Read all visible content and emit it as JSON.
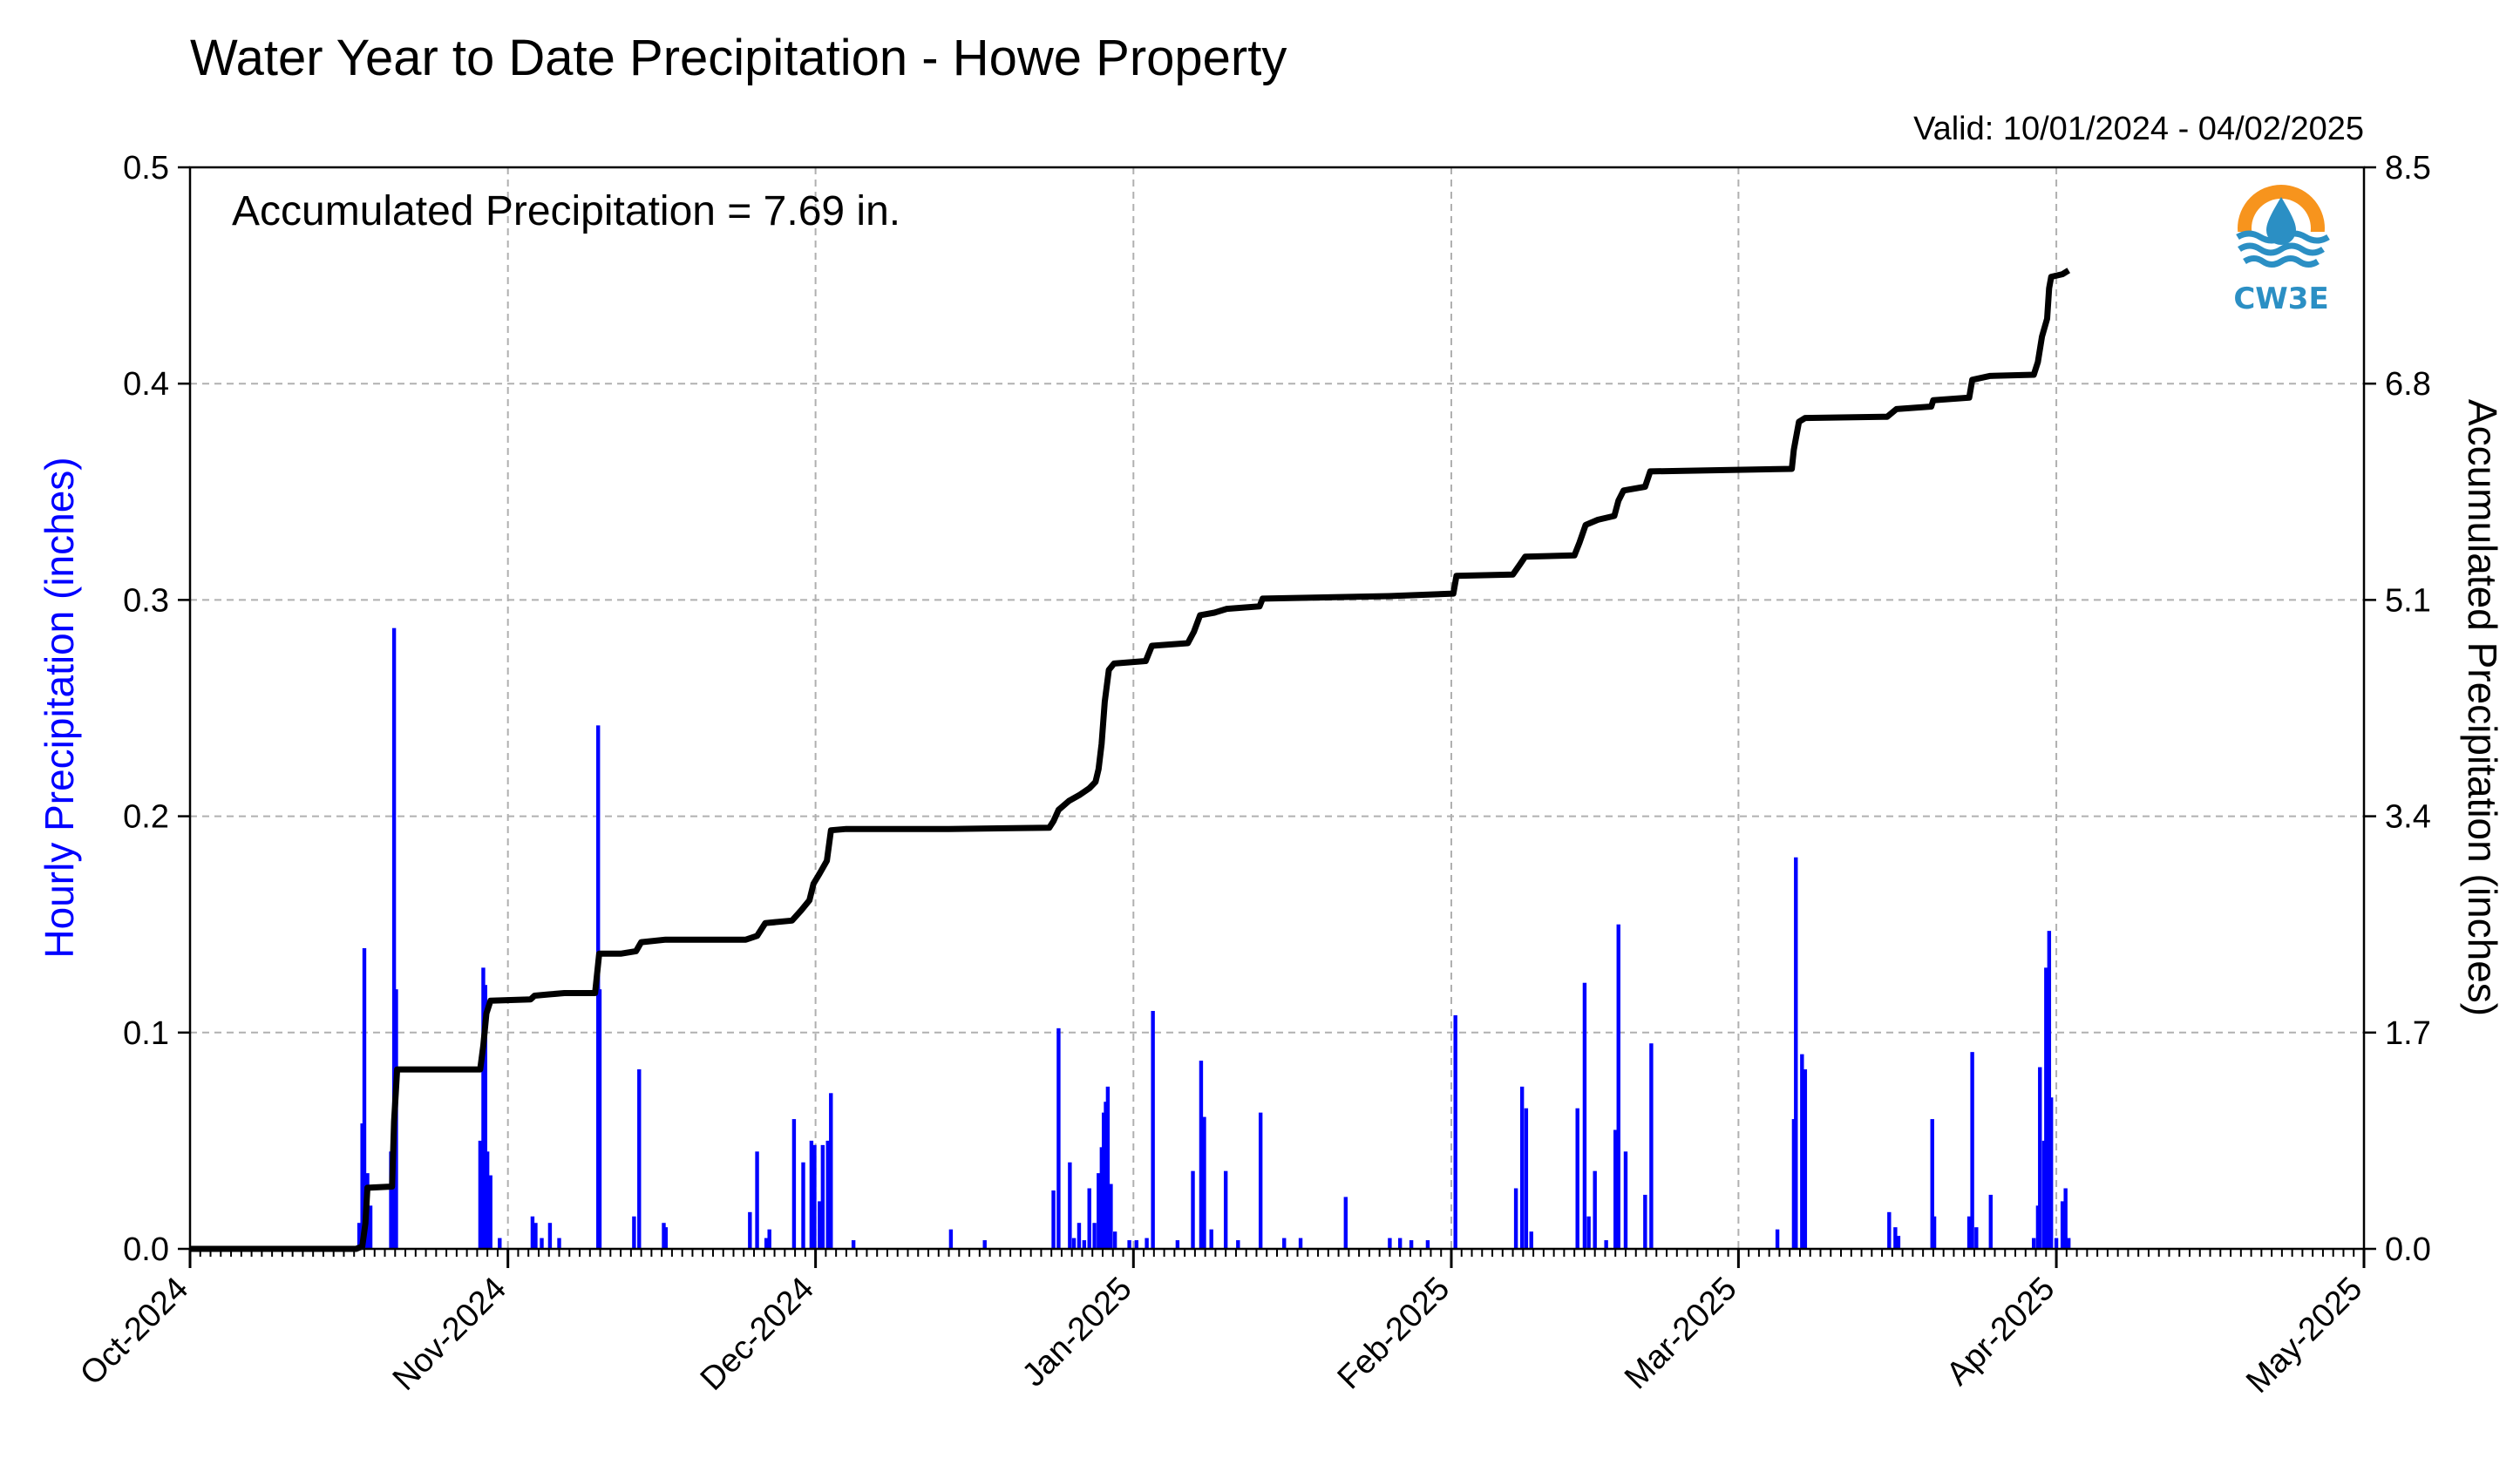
{
  "chart_data": {
    "type": "bar",
    "title": "Water Year to Date Precipitation - Howe Property",
    "subtitle": "Valid: 10/01/2024 - 04/02/2025",
    "annotation": "Accumulated Precipitation = 7.69 in.",
    "logo_text": "CW3E",
    "ylabel_left": "Hourly Precipitation (inches)",
    "ylabel_right": "Accumulated Precipitation (inches)",
    "ylim_left": [
      0,
      0.5
    ],
    "ylim_right": [
      0,
      8.5
    ],
    "yticks_left": [
      "0.0",
      "0.1",
      "0.2",
      "0.3",
      "0.4",
      "0.5"
    ],
    "yticks_right": [
      "0.0",
      "1.7",
      "3.4",
      "5.1",
      "6.8",
      "8.5"
    ],
    "xlim_days": [
      0,
      212
    ],
    "xticks": [
      {
        "label": "Oct-2024",
        "day": 0
      },
      {
        "label": "Nov-2024",
        "day": 31
      },
      {
        "label": "Dec-2024",
        "day": 61
      },
      {
        "label": "Jan-2025",
        "day": 92
      },
      {
        "label": "Feb-2025",
        "day": 123
      },
      {
        "label": "Mar-2025",
        "day": 151
      },
      {
        "label": "Apr-2025",
        "day": 182
      },
      {
        "label": "May-2025",
        "day": 212
      }
    ],
    "grid": true,
    "colors": {
      "hourly": "#0000ff",
      "accumulated": "#000000",
      "grid": "#b0b0b0",
      "logo_orange": "#f7941d",
      "logo_blue": "#2b8fc4"
    },
    "series": [
      {
        "name": "Hourly Precipitation",
        "type": "bar",
        "points": [
          [
            16.5,
            0.012
          ],
          [
            16.8,
            0.058
          ],
          [
            17.0,
            0.139
          ],
          [
            17.3,
            0.035
          ],
          [
            17.6,
            0.02
          ],
          [
            19.6,
            0.045
          ],
          [
            19.9,
            0.287
          ],
          [
            20.1,
            0.12
          ],
          [
            28.3,
            0.05
          ],
          [
            28.6,
            0.13
          ],
          [
            28.8,
            0.122
          ],
          [
            29.0,
            0.045
          ],
          [
            29.3,
            0.034
          ],
          [
            30.2,
            0.005
          ],
          [
            33.4,
            0.015
          ],
          [
            33.7,
            0.012
          ],
          [
            34.3,
            0.005
          ],
          [
            35.1,
            0.012
          ],
          [
            36.0,
            0.005
          ],
          [
            39.8,
            0.242
          ],
          [
            39.95,
            0.12
          ],
          [
            43.3,
            0.015
          ],
          [
            43.8,
            0.083
          ],
          [
            46.2,
            0.012
          ],
          [
            46.4,
            0.01
          ],
          [
            54.6,
            0.017
          ],
          [
            55.3,
            0.045
          ],
          [
            56.2,
            0.005
          ],
          [
            56.5,
            0.009
          ],
          [
            58.9,
            0.06
          ],
          [
            59.8,
            0.04
          ],
          [
            60.6,
            0.05
          ],
          [
            60.9,
            0.048
          ],
          [
            61.4,
            0.022
          ],
          [
            61.7,
            0.048
          ],
          [
            62.2,
            0.05
          ],
          [
            62.5,
            0.072
          ],
          [
            64.7,
            0.004
          ],
          [
            74.2,
            0.009
          ],
          [
            77.5,
            0.004
          ],
          [
            84.2,
            0.027
          ],
          [
            84.7,
            0.102
          ],
          [
            85.8,
            0.04
          ],
          [
            86.2,
            0.005
          ],
          [
            86.7,
            0.012
          ],
          [
            87.2,
            0.004
          ],
          [
            87.7,
            0.028
          ],
          [
            88.2,
            0.012
          ],
          [
            88.6,
            0.035
          ],
          [
            88.9,
            0.047
          ],
          [
            89.1,
            0.063
          ],
          [
            89.3,
            0.068
          ],
          [
            89.5,
            0.075
          ],
          [
            89.8,
            0.03
          ],
          [
            90.2,
            0.008
          ],
          [
            91.6,
            0.004
          ],
          [
            92.3,
            0.004
          ],
          [
            93.3,
            0.005
          ],
          [
            93.9,
            0.11
          ],
          [
            96.3,
            0.004
          ],
          [
            97.8,
            0.036
          ],
          [
            98.6,
            0.087
          ],
          [
            98.9,
            0.061
          ],
          [
            99.6,
            0.009
          ],
          [
            101.0,
            0.036
          ],
          [
            102.2,
            0.004
          ],
          [
            104.4,
            0.063
          ],
          [
            106.7,
            0.005
          ],
          [
            108.3,
            0.005
          ],
          [
            112.7,
            0.024
          ],
          [
            117.0,
            0.005
          ],
          [
            118.0,
            0.005
          ],
          [
            119.1,
            0.004
          ],
          [
            120.7,
            0.004
          ],
          [
            123.4,
            0.108
          ],
          [
            129.3,
            0.028
          ],
          [
            129.9,
            0.075
          ],
          [
            130.3,
            0.065
          ],
          [
            130.8,
            0.008
          ],
          [
            135.3,
            0.065
          ],
          [
            136.0,
            0.123
          ],
          [
            136.4,
            0.015
          ],
          [
            137.0,
            0.036
          ],
          [
            138.1,
            0.004
          ],
          [
            139.0,
            0.055
          ],
          [
            139.3,
            0.15
          ],
          [
            140.0,
            0.045
          ],
          [
            141.9,
            0.025
          ],
          [
            142.5,
            0.095
          ],
          [
            154.8,
            0.009
          ],
          [
            156.4,
            0.06
          ],
          [
            156.6,
            0.181
          ],
          [
            157.2,
            0.09
          ],
          [
            157.5,
            0.083
          ],
          [
            165.7,
            0.017
          ],
          [
            166.3,
            0.01
          ],
          [
            166.6,
            0.006
          ],
          [
            169.9,
            0.06
          ],
          [
            170.1,
            0.015
          ],
          [
            173.5,
            0.015
          ],
          [
            173.8,
            0.091
          ],
          [
            174.2,
            0.01
          ],
          [
            175.6,
            0.025
          ],
          [
            179.8,
            0.005
          ],
          [
            180.2,
            0.02
          ],
          [
            180.4,
            0.084
          ],
          [
            180.8,
            0.05
          ],
          [
            181.0,
            0.13
          ],
          [
            181.3,
            0.147
          ],
          [
            181.5,
            0.07
          ],
          [
            182.0,
            0.005
          ],
          [
            182.6,
            0.022
          ],
          [
            182.9,
            0.028
          ],
          [
            183.2,
            0.005
          ]
        ]
      },
      {
        "name": "Accumulated Precipitation",
        "type": "line",
        "points": [
          [
            0,
            0
          ],
          [
            16.2,
            0
          ],
          [
            16.8,
            0.02
          ],
          [
            17.1,
            0.2
          ],
          [
            17.3,
            0.48
          ],
          [
            19.7,
            0.49
          ],
          [
            19.9,
            1.0
          ],
          [
            20.2,
            1.41
          ],
          [
            28.3,
            1.41
          ],
          [
            28.6,
            1.6
          ],
          [
            28.9,
            1.85
          ],
          [
            29.3,
            1.95
          ],
          [
            33.2,
            1.96
          ],
          [
            33.6,
            1.99
          ],
          [
            35.0,
            2.0
          ],
          [
            36.5,
            2.01
          ],
          [
            39.5,
            2.01
          ],
          [
            39.9,
            2.32
          ],
          [
            42.0,
            2.32
          ],
          [
            43.5,
            2.34
          ],
          [
            44.0,
            2.41
          ],
          [
            46.4,
            2.43
          ],
          [
            54.2,
            2.43
          ],
          [
            55.3,
            2.46
          ],
          [
            56.1,
            2.56
          ],
          [
            58.7,
            2.58
          ],
          [
            59.6,
            2.66
          ],
          [
            60.4,
            2.74
          ],
          [
            60.8,
            2.87
          ],
          [
            61.4,
            2.95
          ],
          [
            62.1,
            3.05
          ],
          [
            62.5,
            3.29
          ],
          [
            64.0,
            3.3
          ],
          [
            74.0,
            3.3
          ],
          [
            83.8,
            3.31
          ],
          [
            84.2,
            3.36
          ],
          [
            84.7,
            3.45
          ],
          [
            85.7,
            3.52
          ],
          [
            86.8,
            3.57
          ],
          [
            87.7,
            3.62
          ],
          [
            88.3,
            3.67
          ],
          [
            88.6,
            3.77
          ],
          [
            88.9,
            3.97
          ],
          [
            89.2,
            4.3
          ],
          [
            89.6,
            4.55
          ],
          [
            90.1,
            4.6
          ],
          [
            93.2,
            4.62
          ],
          [
            93.8,
            4.74
          ],
          [
            97.3,
            4.76
          ],
          [
            97.9,
            4.85
          ],
          [
            98.5,
            4.98
          ],
          [
            99.9,
            5.0
          ],
          [
            101.1,
            5.03
          ],
          [
            104.3,
            5.05
          ],
          [
            104.6,
            5.11
          ],
          [
            116.9,
            5.13
          ],
          [
            123.2,
            5.15
          ],
          [
            123.5,
            5.29
          ],
          [
            129.0,
            5.3
          ],
          [
            129.7,
            5.38
          ],
          [
            130.2,
            5.44
          ],
          [
            135.0,
            5.45
          ],
          [
            135.5,
            5.55
          ],
          [
            136.1,
            5.69
          ],
          [
            137.3,
            5.73
          ],
          [
            138.9,
            5.76
          ],
          [
            139.3,
            5.88
          ],
          [
            139.8,
            5.96
          ],
          [
            141.9,
            5.99
          ],
          [
            142.4,
            6.11
          ],
          [
            156.2,
            6.13
          ],
          [
            156.4,
            6.28
          ],
          [
            156.9,
            6.5
          ],
          [
            157.5,
            6.53
          ],
          [
            165.5,
            6.54
          ],
          [
            166.4,
            6.6
          ],
          [
            169.8,
            6.62
          ],
          [
            170.0,
            6.67
          ],
          [
            173.5,
            6.69
          ],
          [
            173.8,
            6.83
          ],
          [
            175.5,
            6.86
          ],
          [
            179.8,
            6.87
          ],
          [
            180.2,
            6.97
          ],
          [
            180.6,
            7.17
          ],
          [
            181.1,
            7.31
          ],
          [
            181.3,
            7.55
          ],
          [
            181.5,
            7.64
          ],
          [
            182.6,
            7.66
          ],
          [
            183.2,
            7.69
          ]
        ]
      }
    ]
  }
}
